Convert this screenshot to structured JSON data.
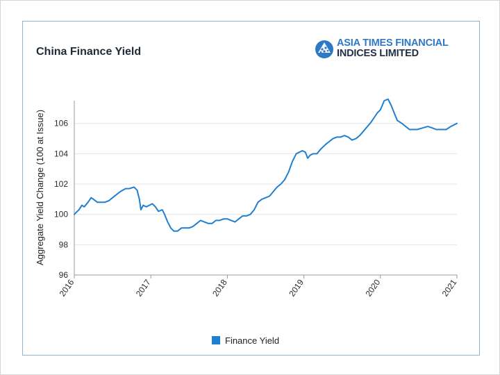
{
  "chart_data": {
    "type": "line",
    "title": "China Finance Yield",
    "ylabel": "Aggregate Yield Change (100 at Issue)",
    "xlabel": "",
    "ylim": [
      96,
      107.5
    ],
    "xlim": [
      2016,
      2021
    ],
    "yticks": [
      96,
      98,
      100,
      102,
      104,
      106
    ],
    "xticks": [
      "2016",
      "2017",
      "2018",
      "2019",
      "2020",
      "2021"
    ],
    "grid": true,
    "legend_position": "bottom-center",
    "series": [
      {
        "name": "Finance Yield",
        "color": "#1f7fd0",
        "points": [
          [
            2016.0,
            100.0
          ],
          [
            2016.06,
            100.3
          ],
          [
            2016.1,
            100.6
          ],
          [
            2016.13,
            100.5
          ],
          [
            2016.18,
            100.8
          ],
          [
            2016.22,
            101.1
          ],
          [
            2016.25,
            101.0
          ],
          [
            2016.3,
            100.8
          ],
          [
            2016.35,
            100.8
          ],
          [
            2016.4,
            100.8
          ],
          [
            2016.45,
            100.9
          ],
          [
            2016.5,
            101.1
          ],
          [
            2016.55,
            101.3
          ],
          [
            2016.6,
            101.5
          ],
          [
            2016.67,
            101.7
          ],
          [
            2016.72,
            101.7
          ],
          [
            2016.78,
            101.8
          ],
          [
            2016.82,
            101.6
          ],
          [
            2016.85,
            101.0
          ],
          [
            2016.87,
            100.3
          ],
          [
            2016.9,
            100.6
          ],
          [
            2016.94,
            100.5
          ],
          [
            2016.98,
            100.6
          ],
          [
            2017.02,
            100.7
          ],
          [
            2017.06,
            100.5
          ],
          [
            2017.1,
            100.2
          ],
          [
            2017.15,
            100.3
          ],
          [
            2017.18,
            100.0
          ],
          [
            2017.22,
            99.5
          ],
          [
            2017.26,
            99.1
          ],
          [
            2017.3,
            98.9
          ],
          [
            2017.35,
            98.9
          ],
          [
            2017.4,
            99.1
          ],
          [
            2017.45,
            99.1
          ],
          [
            2017.5,
            99.1
          ],
          [
            2017.55,
            99.2
          ],
          [
            2017.6,
            99.4
          ],
          [
            2017.65,
            99.6
          ],
          [
            2017.7,
            99.5
          ],
          [
            2017.75,
            99.4
          ],
          [
            2017.8,
            99.4
          ],
          [
            2017.85,
            99.6
          ],
          [
            2017.9,
            99.6
          ],
          [
            2017.95,
            99.7
          ],
          [
            2018.0,
            99.7
          ],
          [
            2018.05,
            99.6
          ],
          [
            2018.1,
            99.5
          ],
          [
            2018.15,
            99.7
          ],
          [
            2018.2,
            99.9
          ],
          [
            2018.25,
            99.9
          ],
          [
            2018.3,
            100.0
          ],
          [
            2018.35,
            100.3
          ],
          [
            2018.4,
            100.8
          ],
          [
            2018.45,
            101.0
          ],
          [
            2018.5,
            101.1
          ],
          [
            2018.55,
            101.2
          ],
          [
            2018.6,
            101.5
          ],
          [
            2018.65,
            101.8
          ],
          [
            2018.7,
            102.0
          ],
          [
            2018.75,
            102.3
          ],
          [
            2018.8,
            102.8
          ],
          [
            2018.85,
            103.5
          ],
          [
            2018.9,
            104.0
          ],
          [
            2018.94,
            104.1
          ],
          [
            2018.98,
            104.2
          ],
          [
            2019.02,
            104.1
          ],
          [
            2019.05,
            103.7
          ],
          [
            2019.08,
            103.9
          ],
          [
            2019.12,
            104.0
          ],
          [
            2019.17,
            104.0
          ],
          [
            2019.22,
            104.3
          ],
          [
            2019.28,
            104.6
          ],
          [
            2019.33,
            104.8
          ],
          [
            2019.38,
            105.0
          ],
          [
            2019.43,
            105.1
          ],
          [
            2019.48,
            105.1
          ],
          [
            2019.53,
            105.2
          ],
          [
            2019.58,
            105.1
          ],
          [
            2019.63,
            104.9
          ],
          [
            2019.68,
            105.0
          ],
          [
            2019.73,
            105.2
          ],
          [
            2019.78,
            105.5
          ],
          [
            2019.83,
            105.8
          ],
          [
            2019.88,
            106.1
          ],
          [
            2019.92,
            106.4
          ],
          [
            2019.96,
            106.7
          ],
          [
            2020.0,
            106.9
          ],
          [
            2020.05,
            107.5
          ],
          [
            2020.1,
            107.6
          ],
          [
            2020.14,
            107.2
          ],
          [
            2020.18,
            106.7
          ],
          [
            2020.22,
            106.2
          ],
          [
            2020.28,
            106.0
          ],
          [
            2020.33,
            105.8
          ],
          [
            2020.38,
            105.6
          ],
          [
            2020.43,
            105.6
          ],
          [
            2020.48,
            105.6
          ],
          [
            2020.55,
            105.7
          ],
          [
            2020.62,
            105.8
          ],
          [
            2020.68,
            105.7
          ],
          [
            2020.73,
            105.6
          ],
          [
            2020.8,
            105.6
          ],
          [
            2020.86,
            105.6
          ],
          [
            2020.92,
            105.8
          ],
          [
            2021.0,
            106.0
          ]
        ]
      }
    ]
  }
}
